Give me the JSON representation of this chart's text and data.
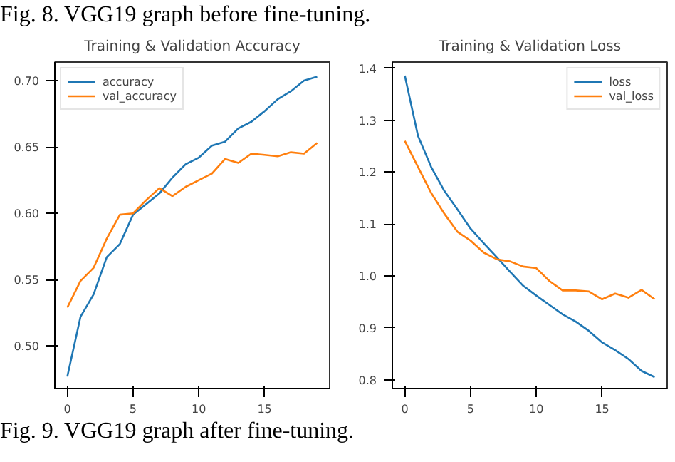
{
  "chart_data": [
    {
      "type": "line",
      "title": "Training & Validation Accuracy",
      "annotations": [
        "Fig. 8.  VGG19 graph before fine-tuning."
      ],
      "x": [
        0,
        1,
        2,
        3,
        4,
        5,
        6,
        7,
        8,
        9,
        10,
        11,
        12,
        13,
        14,
        15,
        16,
        17,
        18,
        19
      ],
      "series": [
        {
          "name": "accuracy",
          "color": "#1f77b4",
          "values": [
            0.477,
            0.522,
            0.539,
            0.567,
            0.577,
            0.599,
            0.607,
            0.615,
            0.627,
            0.637,
            0.642,
            0.651,
            0.654,
            0.664,
            0.669,
            0.677,
            0.686,
            0.692,
            0.7,
            0.703
          ]
        },
        {
          "name": "val_accuracy",
          "color": "#ff7f0e",
          "values": [
            0.529,
            0.549,
            0.559,
            0.581,
            0.599,
            0.6,
            0.61,
            0.619,
            0.613,
            0.62,
            0.625,
            0.63,
            0.641,
            0.638,
            0.645,
            0.644,
            0.643,
            0.646,
            0.645,
            0.653
          ]
        }
      ],
      "xlim": [
        -0.95,
        19.95
      ],
      "xticks": [
        0,
        5,
        10,
        15
      ],
      "ylim": [
        0.468,
        0.714
      ],
      "yticks": [
        {
          "value": 0.5,
          "label": "0.50"
        },
        {
          "value": 0.55,
          "label": "0.55"
        },
        {
          "value": 0.6,
          "label": "0.60"
        },
        {
          "value": 0.65,
          "label": "0.65"
        },
        {
          "value": 0.7,
          "label": "0.70"
        }
      ],
      "grid": false,
      "legend": "top left",
      "marker": "none",
      "line_style": "solid"
    },
    {
      "type": "line",
      "title": "Training & Validation Loss",
      "annotations": [
        "Fig. 9.  VGG19 graph after fine-tuning."
      ],
      "x": [
        0,
        1,
        2,
        3,
        4,
        5,
        6,
        7,
        8,
        9,
        10,
        11,
        12,
        13,
        14,
        15,
        16,
        17,
        18,
        19
      ],
      "series": [
        {
          "name": "loss",
          "color": "#1f77b4",
          "values": [
            1.386,
            1.27,
            1.21,
            1.164,
            1.128,
            1.091,
            1.063,
            1.036,
            1.008,
            0.981,
            0.962,
            0.944,
            0.926,
            0.912,
            0.894,
            0.872,
            0.857,
            0.84,
            0.817,
            0.805
          ]
        },
        {
          "name": "val_loss",
          "color": "#ff7f0e",
          "values": [
            1.26,
            1.21,
            1.16,
            1.12,
            1.085,
            1.068,
            1.045,
            1.032,
            1.028,
            1.018,
            1.015,
            0.99,
            0.972,
            0.972,
            0.97,
            0.955,
            0.966,
            0.958,
            0.973,
            0.955
          ]
        }
      ],
      "xlim": [
        -0.95,
        19.95
      ],
      "xticks": [
        0,
        5,
        10,
        15
      ],
      "ylim": [
        0.783,
        1.412
      ],
      "yticks": [
        {
          "value": 0.8,
          "label": "0.8"
        },
        {
          "value": 0.9,
          "label": "0.9"
        },
        {
          "value": 1.0,
          "label": "1.0"
        },
        {
          "value": 1.1,
          "label": "1.1"
        },
        {
          "value": 1.2,
          "label": "1.2"
        },
        {
          "value": 1.3,
          "label": "1.3"
        },
        {
          "value": 1.4,
          "label": "1.4"
        }
      ],
      "grid": false,
      "legend": "top right",
      "marker": "none",
      "line_style": "solid"
    }
  ]
}
